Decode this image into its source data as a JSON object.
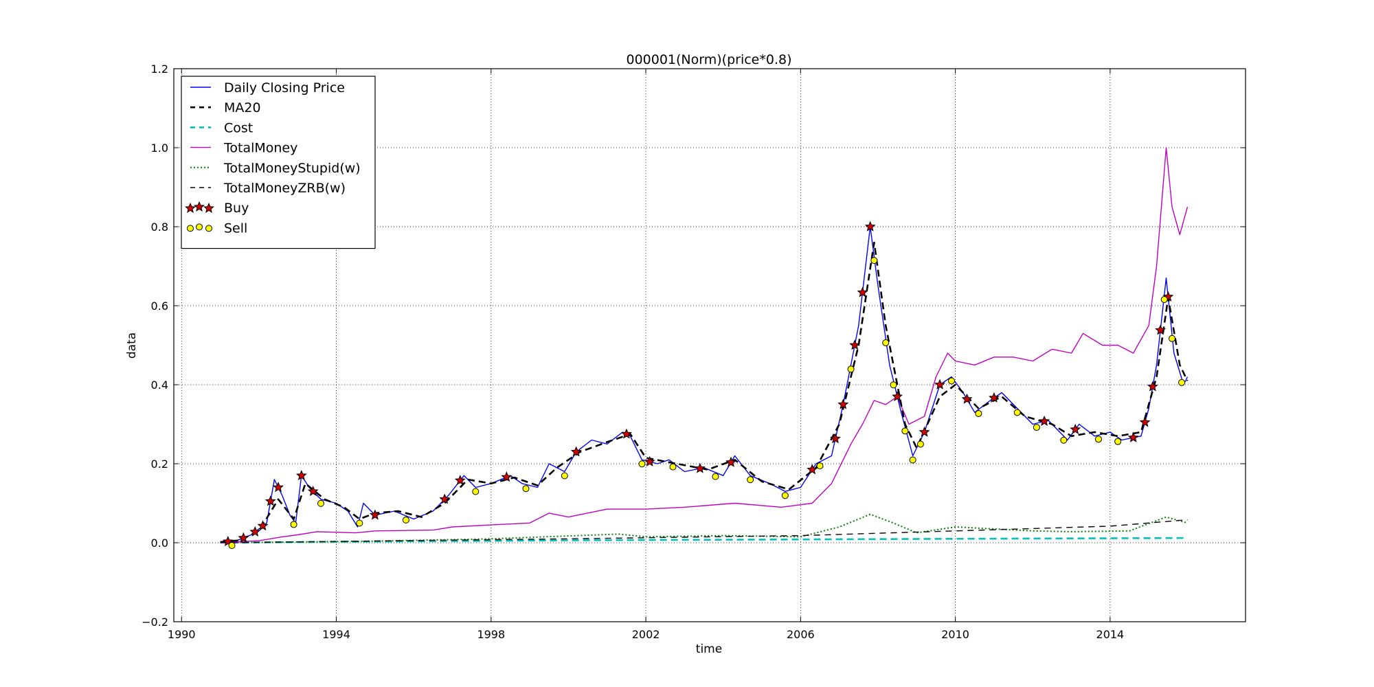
{
  "chart_data": {
    "type": "line",
    "title": "000001(Norm)(price*0.8)",
    "xlabel": "time",
    "ylabel": "data",
    "xlim": [
      1989.8,
      2017.5
    ],
    "ylim": [
      -0.2,
      1.2
    ],
    "x_ticks": [
      1990,
      1994,
      1998,
      2002,
      2006,
      2010,
      2014
    ],
    "x_tick_labels": [
      "1990",
      "1994",
      "1998",
      "2002",
      "2006",
      "2010",
      "2014"
    ],
    "y_ticks": [
      -0.2,
      0.0,
      0.2,
      0.4,
      0.6,
      0.8,
      1.0,
      1.2
    ],
    "y_tick_labels": [
      "−0.2",
      "0.0",
      "0.2",
      "0.4",
      "0.6",
      "0.8",
      "1.0",
      "1.2"
    ],
    "grid": true,
    "legend_position": "top-left",
    "series": [
      {
        "name": "Daily Closing Price",
        "style": "solid",
        "color": "#0000ff",
        "points": [
          [
            1991.0,
            0.002
          ],
          [
            1991.4,
            0.004
          ],
          [
            1991.8,
            0.02
          ],
          [
            1992.2,
            0.05
          ],
          [
            1992.4,
            0.16
          ],
          [
            1992.6,
            0.12
          ],
          [
            1992.8,
            0.07
          ],
          [
            1992.95,
            0.05
          ],
          [
            1993.1,
            0.17
          ],
          [
            1993.3,
            0.14
          ],
          [
            1993.6,
            0.11
          ],
          [
            1994.0,
            0.1
          ],
          [
            1994.3,
            0.08
          ],
          [
            1994.55,
            0.04
          ],
          [
            1994.7,
            0.1
          ],
          [
            1995.0,
            0.07
          ],
          [
            1995.5,
            0.08
          ],
          [
            1996.0,
            0.06
          ],
          [
            1996.5,
            0.08
          ],
          [
            1996.9,
            0.12
          ],
          [
            1997.3,
            0.17
          ],
          [
            1997.6,
            0.14
          ],
          [
            1998.0,
            0.15
          ],
          [
            1998.5,
            0.17
          ],
          [
            1998.8,
            0.15
          ],
          [
            1999.2,
            0.14
          ],
          [
            1999.5,
            0.2
          ],
          [
            1999.9,
            0.18
          ],
          [
            2000.2,
            0.23
          ],
          [
            2000.6,
            0.26
          ],
          [
            2001.0,
            0.25
          ],
          [
            2001.4,
            0.28
          ],
          [
            2001.6,
            0.27
          ],
          [
            2001.9,
            0.21
          ],
          [
            2002.3,
            0.2
          ],
          [
            2002.6,
            0.21
          ],
          [
            2003.0,
            0.18
          ],
          [
            2003.5,
            0.19
          ],
          [
            2004.0,
            0.17
          ],
          [
            2004.3,
            0.22
          ],
          [
            2004.7,
            0.17
          ],
          [
            2005.2,
            0.15
          ],
          [
            2005.6,
            0.13
          ],
          [
            2006.0,
            0.14
          ],
          [
            2006.4,
            0.2
          ],
          [
            2006.8,
            0.22
          ],
          [
            2007.1,
            0.35
          ],
          [
            2007.5,
            0.55
          ],
          [
            2007.8,
            0.8
          ],
          [
            2008.0,
            0.65
          ],
          [
            2008.3,
            0.45
          ],
          [
            2008.6,
            0.33
          ],
          [
            2008.9,
            0.22
          ],
          [
            2009.2,
            0.28
          ],
          [
            2009.6,
            0.4
          ],
          [
            2009.9,
            0.42
          ],
          [
            2010.2,
            0.38
          ],
          [
            2010.5,
            0.33
          ],
          [
            2010.9,
            0.36
          ],
          [
            2011.2,
            0.38
          ],
          [
            2011.6,
            0.34
          ],
          [
            2012.0,
            0.3
          ],
          [
            2012.4,
            0.31
          ],
          [
            2012.9,
            0.26
          ],
          [
            2013.2,
            0.3
          ],
          [
            2013.6,
            0.27
          ],
          [
            2014.0,
            0.28
          ],
          [
            2014.3,
            0.26
          ],
          [
            2014.8,
            0.27
          ],
          [
            2015.0,
            0.34
          ],
          [
            2015.2,
            0.45
          ],
          [
            2015.45,
            0.67
          ],
          [
            2015.65,
            0.48
          ],
          [
            2015.9,
            0.4
          ],
          [
            2016.0,
            0.42
          ]
        ]
      },
      {
        "name": "MA20",
        "style": "dashed",
        "color": "#000000",
        "points": [
          [
            1991.0,
            0.002
          ],
          [
            1991.5,
            0.006
          ],
          [
            1992.0,
            0.03
          ],
          [
            1992.5,
            0.11
          ],
          [
            1992.9,
            0.06
          ],
          [
            1993.2,
            0.15
          ],
          [
            1993.7,
            0.11
          ],
          [
            1994.2,
            0.09
          ],
          [
            1994.6,
            0.06
          ],
          [
            1995.0,
            0.075
          ],
          [
            1995.6,
            0.08
          ],
          [
            1996.2,
            0.065
          ],
          [
            1996.8,
            0.1
          ],
          [
            1997.4,
            0.16
          ],
          [
            1998.0,
            0.15
          ],
          [
            1998.6,
            0.165
          ],
          [
            1999.2,
            0.145
          ],
          [
            1999.7,
            0.19
          ],
          [
            2000.3,
            0.23
          ],
          [
            2001.0,
            0.255
          ],
          [
            2001.6,
            0.275
          ],
          [
            2002.0,
            0.215
          ],
          [
            2002.8,
            0.2
          ],
          [
            2003.6,
            0.185
          ],
          [
            2004.3,
            0.21
          ],
          [
            2005.0,
            0.155
          ],
          [
            2005.7,
            0.135
          ],
          [
            2006.4,
            0.19
          ],
          [
            2007.0,
            0.3
          ],
          [
            2007.5,
            0.5
          ],
          [
            2007.9,
            0.76
          ],
          [
            2008.2,
            0.55
          ],
          [
            2008.7,
            0.3
          ],
          [
            2009.0,
            0.24
          ],
          [
            2009.6,
            0.37
          ],
          [
            2010.0,
            0.4
          ],
          [
            2010.6,
            0.34
          ],
          [
            2011.2,
            0.37
          ],
          [
            2011.8,
            0.32
          ],
          [
            2012.5,
            0.3
          ],
          [
            2013.0,
            0.27
          ],
          [
            2013.6,
            0.28
          ],
          [
            2014.2,
            0.27
          ],
          [
            2014.8,
            0.28
          ],
          [
            2015.2,
            0.42
          ],
          [
            2015.5,
            0.62
          ],
          [
            2015.8,
            0.45
          ],
          [
            2016.0,
            0.41
          ]
        ]
      },
      {
        "name": "Cost",
        "style": "dashed",
        "color": "#00bfbf",
        "points": [
          [
            1991.0,
            0.0
          ],
          [
            1995.0,
            0.003
          ],
          [
            2000.0,
            0.006
          ],
          [
            2005.0,
            0.008
          ],
          [
            2010.0,
            0.01
          ],
          [
            2016.0,
            0.012
          ]
        ]
      },
      {
        "name": "TotalMoney",
        "style": "solid",
        "color": "#bf00bf",
        "points": [
          [
            1991.0,
            0.0
          ],
          [
            1992.0,
            0.005
          ],
          [
            1992.6,
            0.015
          ],
          [
            1993.0,
            0.02
          ],
          [
            1993.5,
            0.028
          ],
          [
            1994.5,
            0.025
          ],
          [
            1995.0,
            0.03
          ],
          [
            1996.5,
            0.032
          ],
          [
            1997.0,
            0.04
          ],
          [
            1998.0,
            0.045
          ],
          [
            1999.0,
            0.05
          ],
          [
            1999.5,
            0.075
          ],
          [
            2000.0,
            0.065
          ],
          [
            2001.0,
            0.085
          ],
          [
            2002.0,
            0.085
          ],
          [
            2003.0,
            0.09
          ],
          [
            2004.3,
            0.1
          ],
          [
            2005.5,
            0.09
          ],
          [
            2006.3,
            0.1
          ],
          [
            2006.8,
            0.15
          ],
          [
            2007.3,
            0.25
          ],
          [
            2007.6,
            0.3
          ],
          [
            2007.9,
            0.36
          ],
          [
            2008.2,
            0.35
          ],
          [
            2008.5,
            0.37
          ],
          [
            2008.8,
            0.3
          ],
          [
            2009.2,
            0.32
          ],
          [
            2009.5,
            0.42
          ],
          [
            2009.8,
            0.48
          ],
          [
            2010.0,
            0.46
          ],
          [
            2010.5,
            0.45
          ],
          [
            2011.0,
            0.47
          ],
          [
            2011.5,
            0.47
          ],
          [
            2012.0,
            0.46
          ],
          [
            2012.5,
            0.49
          ],
          [
            2013.0,
            0.48
          ],
          [
            2013.3,
            0.53
          ],
          [
            2013.8,
            0.5
          ],
          [
            2014.2,
            0.5
          ],
          [
            2014.6,
            0.48
          ],
          [
            2015.0,
            0.55
          ],
          [
            2015.2,
            0.7
          ],
          [
            2015.45,
            1.0
          ],
          [
            2015.6,
            0.85
          ],
          [
            2015.8,
            0.78
          ],
          [
            2016.0,
            0.85
          ]
        ]
      },
      {
        "name": "TotalMoneyStupid(w)",
        "style": "dotted",
        "color": "#008000",
        "points": [
          [
            1991.0,
            0.0
          ],
          [
            1995.0,
            0.004
          ],
          [
            1998.0,
            0.01
          ],
          [
            2001.3,
            0.022
          ],
          [
            2002.0,
            0.015
          ],
          [
            2004.0,
            0.018
          ],
          [
            2006.0,
            0.015
          ],
          [
            2007.0,
            0.04
          ],
          [
            2007.8,
            0.072
          ],
          [
            2008.4,
            0.05
          ],
          [
            2009.0,
            0.025
          ],
          [
            2010.0,
            0.04
          ],
          [
            2011.0,
            0.035
          ],
          [
            2012.0,
            0.03
          ],
          [
            2013.0,
            0.028
          ],
          [
            2014.5,
            0.03
          ],
          [
            2015.45,
            0.065
          ],
          [
            2016.0,
            0.05
          ]
        ]
      },
      {
        "name": "TotalMoneyZRB(w)",
        "style": "dashed-thin",
        "color": "#000000",
        "points": [
          [
            1991.0,
            0.0
          ],
          [
            2000.0,
            0.01
          ],
          [
            2006.0,
            0.018
          ],
          [
            2010.0,
            0.03
          ],
          [
            2014.0,
            0.042
          ],
          [
            2016.0,
            0.058
          ]
        ]
      }
    ],
    "markers": [
      {
        "name": "Buy",
        "shape": "star",
        "color": "#cc0000",
        "x": [
          1991.2,
          1991.6,
          1991.9,
          1992.1,
          1992.3,
          1992.5,
          1993.1,
          1993.4,
          1995.0,
          1996.8,
          1997.2,
          1998.4,
          2000.2,
          2001.5,
          2002.1,
          2003.4,
          2004.2,
          2006.3,
          2006.9,
          2007.1,
          2007.4,
          2007.6,
          2007.8,
          2008.5,
          2009.2,
          2009.6,
          2010.3,
          2011.0,
          2012.3,
          2013.1,
          2014.6,
          2014.9,
          2015.1,
          2015.3,
          2015.5
        ]
      },
      {
        "name": "Sell",
        "shape": "circle",
        "color": "#ffff00",
        "x": [
          1991.3,
          1992.9,
          1993.6,
          1994.6,
          1995.8,
          1997.6,
          1998.9,
          1999.9,
          2001.9,
          2002.7,
          2003.8,
          2004.7,
          2005.6,
          2006.5,
          2007.3,
          2007.9,
          2008.2,
          2008.4,
          2008.7,
          2008.9,
          2009.1,
          2009.9,
          2010.6,
          2011.6,
          2012.1,
          2012.8,
          2013.7,
          2014.2,
          2015.4,
          2015.6,
          2015.85
        ]
      }
    ]
  }
}
